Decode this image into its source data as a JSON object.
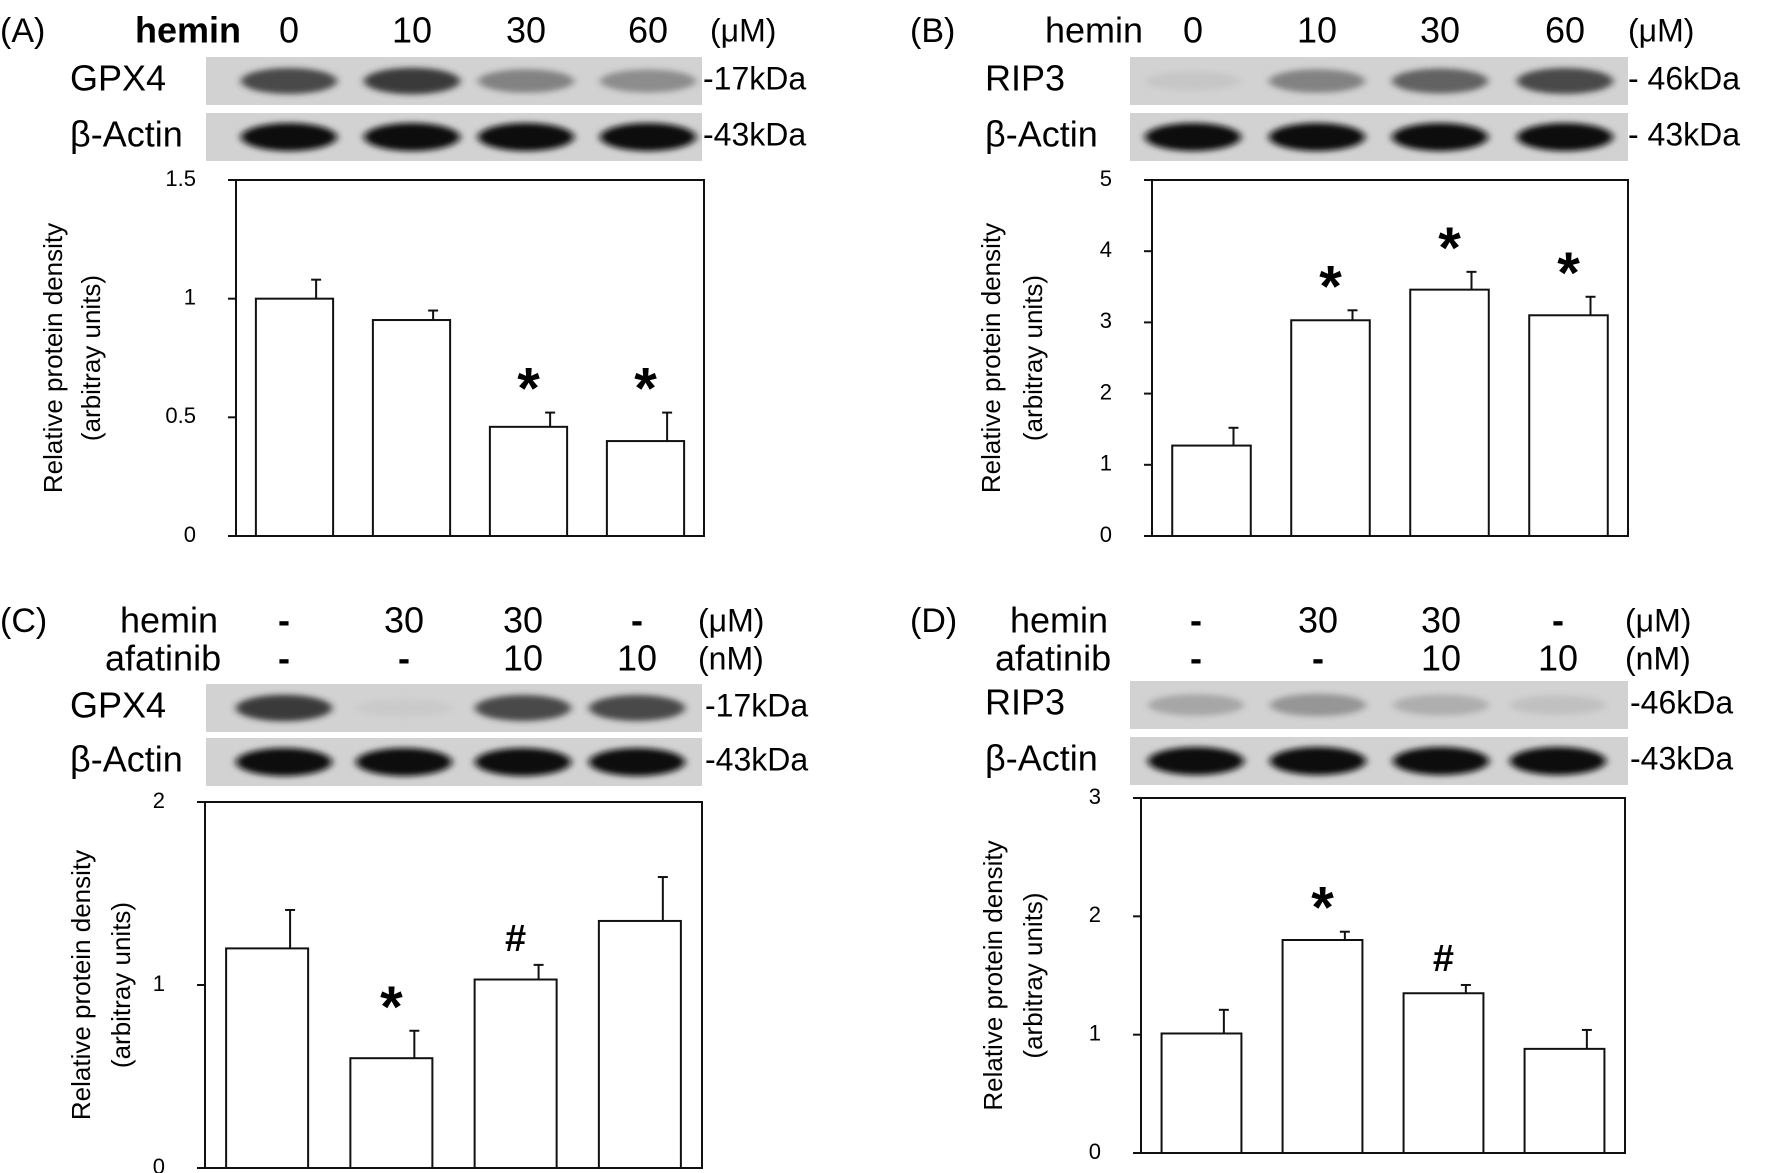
{
  "figure": {
    "shared_ylabel_line1": "Relative protein density",
    "shared_ylabel_line2": "(arbitray units)"
  },
  "panels": [
    {
      "id": "A",
      "tag": "(A)",
      "conditions": [
        {
          "label": "hemin",
          "values": [
            "0",
            "10",
            "30",
            "60"
          ],
          "unit": "(μM)",
          "bold": true
        }
      ],
      "blots": [
        {
          "protein": "GPX4",
          "kda": "-17kDa",
          "intensities": [
            0.8,
            0.85,
            0.55,
            0.5
          ]
        },
        {
          "protein": "β-Actin",
          "kda": "-43kDa",
          "intensities": [
            1,
            1,
            1,
            1
          ]
        }
      ]
    },
    {
      "id": "B",
      "tag": "(B)",
      "conditions": [
        {
          "label": "hemin",
          "values": [
            "0",
            "10",
            "30",
            "60"
          ],
          "unit": "(μM)",
          "bold": false
        }
      ],
      "blots": [
        {
          "protein": "RIP3",
          "kda": "- 46kDa",
          "intensities": [
            0.1,
            0.55,
            0.7,
            0.8
          ]
        },
        {
          "protein": "β-Actin",
          "kda": "- 43kDa",
          "intensities": [
            1,
            1,
            1,
            1
          ]
        }
      ]
    },
    {
      "id": "C",
      "tag": "(C)",
      "conditions": [
        {
          "label": "hemin",
          "values": [
            "-",
            "30",
            "30",
            "-"
          ],
          "unit": "(μM)",
          "bold": false
        },
        {
          "label": "afatinib",
          "values": [
            "-",
            "-",
            "10",
            "10"
          ],
          "unit": "(nM)",
          "bold": false
        }
      ],
      "blots": [
        {
          "protein": "GPX4",
          "kda": "-17kDa",
          "intensities": [
            0.85,
            0.05,
            0.8,
            0.8
          ]
        },
        {
          "protein": "β-Actin",
          "kda": "-43kDa",
          "intensities": [
            1,
            1,
            1,
            1
          ]
        }
      ]
    },
    {
      "id": "D",
      "tag": "(D)",
      "conditions": [
        {
          "label": "hemin",
          "values": [
            "-",
            "30",
            "30",
            "-"
          ],
          "unit": "(μM)",
          "bold": false
        },
        {
          "label": "afatinib",
          "values": [
            "-",
            "-",
            "10",
            "10"
          ],
          "unit": "(nM)",
          "bold": false
        }
      ],
      "blots": [
        {
          "protein": "RIP3",
          "kda": "-46kDa",
          "intensities": [
            0.35,
            0.45,
            0.3,
            0.15
          ]
        },
        {
          "protein": "β-Actin",
          "kda": "-43kDa",
          "intensities": [
            1,
            1,
            1,
            1
          ]
        }
      ]
    }
  ],
  "chart_data": [
    {
      "panel": "A",
      "type": "bar",
      "categories": [
        "0",
        "10",
        "30",
        "60"
      ],
      "values": [
        1.0,
        0.91,
        0.46,
        0.4
      ],
      "errors": [
        0.08,
        0.04,
        0.06,
        0.12
      ],
      "annotations": [
        "",
        "",
        "*",
        "*"
      ],
      "ylabel": "Relative protein density (arbitray units)",
      "ylim": [
        0,
        1.5
      ],
      "yticks": [
        0,
        0.5,
        1,
        1.5
      ],
      "ytick_labels": [
        "0",
        "0.5",
        "1",
        "1.5"
      ],
      "grid": false,
      "legend": "none"
    },
    {
      "panel": "B",
      "type": "bar",
      "categories": [
        "0",
        "10",
        "30",
        "60"
      ],
      "values": [
        1.27,
        3.03,
        3.46,
        3.1
      ],
      "errors": [
        0.25,
        0.14,
        0.25,
        0.26
      ],
      "annotations": [
        "",
        "*",
        "*",
        "*"
      ],
      "ylabel": "Relative protein density (arbitray units)",
      "ylim": [
        0,
        5
      ],
      "yticks": [
        0,
        1,
        2,
        3,
        4,
        5
      ],
      "ytick_labels": [
        "0",
        "1",
        "2",
        "3",
        "4",
        "5"
      ],
      "grid": false,
      "legend": "none"
    },
    {
      "panel": "C",
      "type": "bar",
      "categories": [
        "- / -",
        "30 / -",
        "30 / 10",
        "- / 10"
      ],
      "values": [
        1.2,
        0.6,
        1.03,
        1.35
      ],
      "errors": [
        0.21,
        0.15,
        0.08,
        0.24
      ],
      "annotations": [
        "",
        "*",
        "#",
        ""
      ],
      "ylabel": "Relative protein density (arbitray units)",
      "ylim": [
        0,
        2
      ],
      "yticks": [
        0,
        1,
        2
      ],
      "ytick_labels": [
        "0",
        "1",
        "2"
      ],
      "grid": false,
      "legend": "none"
    },
    {
      "panel": "D",
      "type": "bar",
      "categories": [
        "- / -",
        "30 / -",
        "30 / 10",
        "- / 10"
      ],
      "values": [
        1.01,
        1.8,
        1.35,
        0.88
      ],
      "errors": [
        0.2,
        0.07,
        0.07,
        0.16
      ],
      "annotations": [
        "",
        "*",
        "#",
        ""
      ],
      "ylabel": "Relative protein density (arbitray units)",
      "ylim": [
        0,
        3
      ],
      "yticks": [
        0,
        1,
        2,
        3
      ],
      "ytick_labels": [
        "0",
        "1",
        "2",
        "3"
      ],
      "grid": false,
      "legend": "none"
    }
  ]
}
